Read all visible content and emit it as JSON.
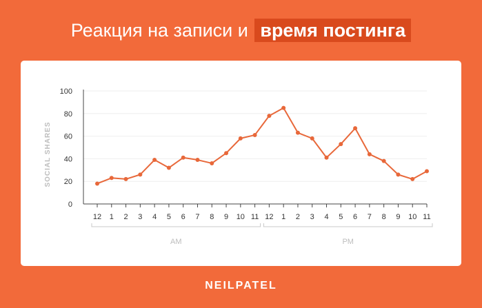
{
  "header": {
    "title_plain": "Реакция на записи и",
    "title_highlight": "время постинга"
  },
  "brand": "NEILPATEL",
  "colors": {
    "background": "#f26a3a",
    "highlight": "#d94a1d",
    "line": "#e8683a"
  },
  "chart_data": {
    "type": "line",
    "title": "",
    "ylabel": "SOCIAL SHARES",
    "xlabel": "",
    "ylim": [
      0,
      100
    ],
    "yticks": [
      0,
      20,
      40,
      60,
      80,
      100
    ],
    "categories": [
      "12",
      "1",
      "2",
      "3",
      "4",
      "5",
      "6",
      "7",
      "8",
      "9",
      "10",
      "11",
      "12",
      "1",
      "2",
      "3",
      "4",
      "5",
      "6",
      "7",
      "8",
      "9",
      "10",
      "11"
    ],
    "groups": [
      {
        "label": "AM",
        "from": 0,
        "to": 11
      },
      {
        "label": "PM",
        "from": 12,
        "to": 23
      }
    ],
    "grid": true,
    "series": [
      {
        "values": [
          18,
          23,
          22,
          26,
          39,
          32,
          41,
          39,
          36,
          45,
          58,
          61,
          78,
          85,
          63,
          58,
          41,
          53,
          67,
          44,
          38,
          26,
          22,
          29
        ]
      }
    ]
  }
}
